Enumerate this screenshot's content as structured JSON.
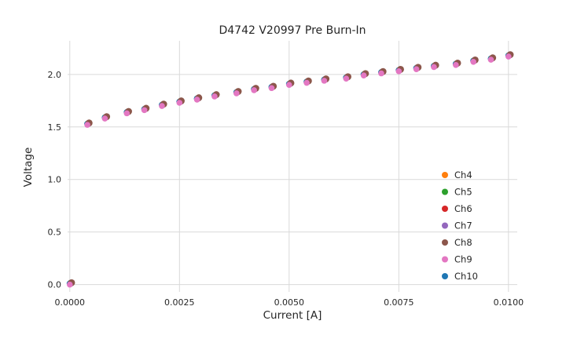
{
  "chart_data": {
    "type": "scatter",
    "title": "D4742 V20997 Pre Burn-In",
    "xlabel": "Current [A]",
    "ylabel": "Voltage",
    "xlim": [
      -5e-05,
      0.0102
    ],
    "ylim": [
      -0.07,
      2.32
    ],
    "xticks": [
      0.0,
      0.0025,
      0.005,
      0.0075,
      0.01
    ],
    "xtick_labels": [
      "0.0000",
      "0.0025",
      "0.0050",
      "0.0075",
      "0.0100"
    ],
    "yticks": [
      0.0,
      0.5,
      1.0,
      1.5,
      2.0
    ],
    "ytick_labels": [
      "0.0",
      "0.5",
      "1.0",
      "1.5",
      "2.0"
    ],
    "grid": true,
    "legend_position": "lower right",
    "x": [
      0.0,
      0.0004,
      0.0008,
      0.0013,
      0.0017,
      0.0021,
      0.0025,
      0.0029,
      0.0033,
      0.0038,
      0.0042,
      0.0046,
      0.005,
      0.0054,
      0.0058,
      0.0063,
      0.0067,
      0.0071,
      0.0075,
      0.0079,
      0.0083,
      0.0088,
      0.0092,
      0.0096,
      0.01
    ],
    "y": [
      0.0,
      1.52,
      1.58,
      1.63,
      1.66,
      1.7,
      1.73,
      1.76,
      1.79,
      1.82,
      1.85,
      1.87,
      1.9,
      1.92,
      1.94,
      1.96,
      1.99,
      2.01,
      2.03,
      2.05,
      2.07,
      2.09,
      2.12,
      2.14,
      2.17
    ],
    "series": [
      {
        "name": "Ch4",
        "color": "#ff7f0e",
        "dx": 2e-05,
        "dy": 0.012,
        "r": 4.0
      },
      {
        "name": "Ch5",
        "color": "#2ca02c",
        "dx": 2e-05,
        "dy": 0.012,
        "r": 4.0
      },
      {
        "name": "Ch6",
        "color": "#d62728",
        "dx": 3e-05,
        "dy": 0.013,
        "r": 4.0
      },
      {
        "name": "Ch7",
        "color": "#9467bd",
        "dx": 3e-05,
        "dy": 0.014,
        "r": 4.2
      },
      {
        "name": "Ch8",
        "color": "#8c564b",
        "dx": 4e-05,
        "dy": 0.018,
        "r": 4.4
      },
      {
        "name": "Ch9",
        "color": "#e377c2",
        "dx": 0.0,
        "dy": 0.0,
        "r": 3.8
      },
      {
        "name": "Ch10",
        "color": "#1f77b4",
        "dx": 0.0,
        "dy": 0.01,
        "r": 4.0
      }
    ],
    "draw_order": [
      "Ch10",
      "Ch4",
      "Ch5",
      "Ch6",
      "Ch7",
      "Ch8",
      "Ch9"
    ],
    "grid_color": "#d9d9d9"
  }
}
